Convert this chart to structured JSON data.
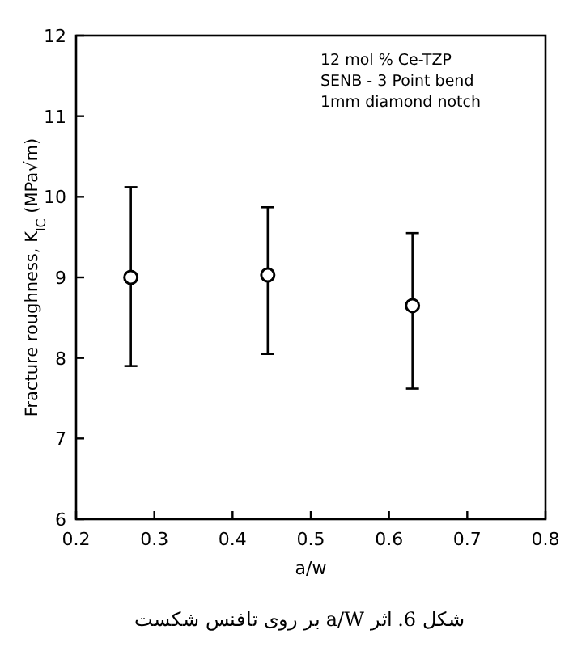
{
  "chart_data": {
    "type": "scatter",
    "xlabel": "a/w",
    "ylabel": "Fracture roughness, K$_{IC}$ (MPa√m)",
    "x": [
      0.27,
      0.445,
      0.63
    ],
    "values": [
      9.0,
      9.03,
      8.65
    ],
    "errors": [
      [
        7.9,
        10.12
      ],
      [
        8.05,
        9.87
      ],
      [
        7.62,
        9.55
      ]
    ],
    "color": "#000000",
    "marker": "circle",
    "xlim": [
      0.2,
      0.8
    ],
    "xticks": [
      0.2,
      0.3,
      0.4,
      0.5,
      0.6,
      0.7,
      0.8
    ],
    "ylim": [
      6,
      12
    ],
    "yticks": [
      6,
      7,
      8,
      9,
      10,
      11,
      12
    ],
    "grid": false,
    "annotations": [
      "12 mol % Ce-TZP",
      "SENB - 3 Point bend",
      "1mm diamond notch",
      "شکل 6. اثر a/W بر روی تافنس شکست"
    ]
  }
}
